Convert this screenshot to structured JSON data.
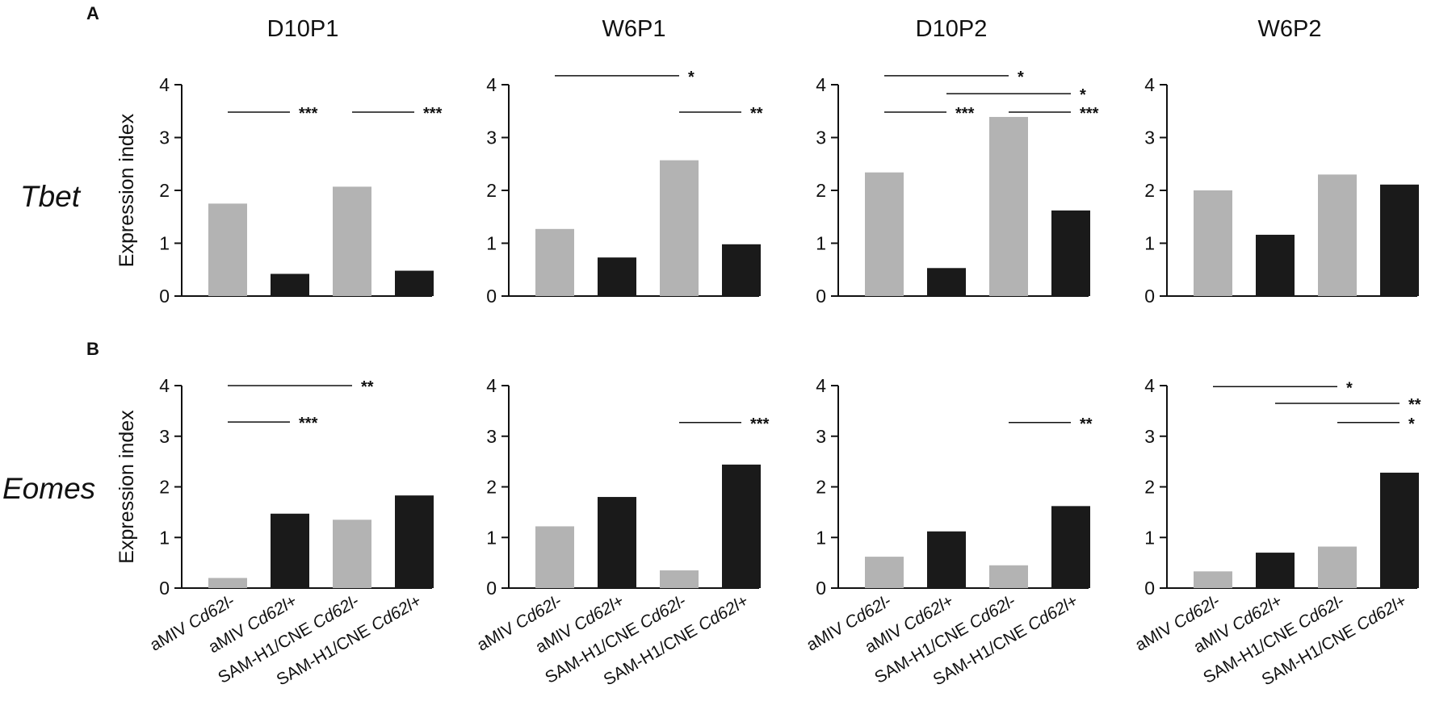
{
  "panel_letters": [
    "A",
    "B"
  ],
  "column_titles": [
    "D10P1",
    "W6P1",
    "D10P2",
    "W6P2"
  ],
  "row_labels": [
    "Tbet",
    "Eomes"
  ],
  "colors": {
    "light_bar": "#b3b3b3",
    "dark_bar": "#1a1a1a",
    "axis": "#111111"
  },
  "chart_data": [
    {
      "type": "bar",
      "row": "Tbet",
      "title": "D10P1",
      "ylabel": "Expression index",
      "ylim": [
        0,
        4
      ],
      "yticks": [
        0,
        1,
        2,
        3,
        4
      ],
      "categories": [
        "aMIV Cd62l-",
        "aMIV Cd62l+",
        "SAM-H1/CNE Cd62l-",
        "SAM-H1/CNE Cd62l+"
      ],
      "values": [
        1.75,
        0.42,
        2.07,
        0.48
      ],
      "significance": [
        {
          "from": 0,
          "to": 1,
          "label": "***",
          "y": 3.48
        },
        {
          "from": 2,
          "to": 3,
          "label": "***",
          "y": 3.48
        }
      ]
    },
    {
      "type": "bar",
      "row": "Tbet",
      "title": "W6P1",
      "ylabel": "",
      "ylim": [
        0,
        4
      ],
      "yticks": [
        0,
        1,
        2,
        3,
        4
      ],
      "categories": [
        "aMIV Cd62l-",
        "aMIV Cd62l+",
        "SAM-H1/CNE Cd62l-",
        "SAM-H1/CNE Cd62l+"
      ],
      "values": [
        1.27,
        0.73,
        2.57,
        0.98
      ],
      "significance": [
        {
          "from": 0,
          "to": 2,
          "label": "*",
          "y": 4.17
        },
        {
          "from": 2,
          "to": 3,
          "label": "**",
          "y": 3.48
        }
      ]
    },
    {
      "type": "bar",
      "row": "Tbet",
      "title": "D10P2",
      "ylabel": "",
      "ylim": [
        0,
        4
      ],
      "yticks": [
        0,
        1,
        2,
        3,
        4
      ],
      "categories": [
        "aMIV Cd62l-",
        "aMIV Cd62l+",
        "SAM-H1/CNE Cd62l-",
        "SAM-H1/CNE Cd62l+"
      ],
      "values": [
        2.34,
        0.53,
        3.39,
        1.62
      ],
      "significance": [
        {
          "from": 0,
          "to": 2,
          "label": "*",
          "y": 4.17
        },
        {
          "from": 1,
          "to": 3,
          "label": "*",
          "y": 3.83
        },
        {
          "from": 0,
          "to": 1,
          "label": "***",
          "y": 3.48
        },
        {
          "from": 2,
          "to": 3,
          "label": "***",
          "y": 3.48
        }
      ]
    },
    {
      "type": "bar",
      "row": "Tbet",
      "title": "W6P2",
      "ylabel": "",
      "ylim": [
        0,
        4
      ],
      "yticks": [
        0,
        1,
        2,
        3,
        4
      ],
      "categories": [
        "aMIV Cd62l-",
        "aMIV Cd62l+",
        "SAM-H1/CNE Cd62l-",
        "SAM-H1/CNE Cd62l+"
      ],
      "values": [
        2.0,
        1.16,
        2.3,
        2.11
      ],
      "significance": []
    },
    {
      "type": "bar",
      "row": "Eomes",
      "title": "D10P1",
      "ylabel": "Expression index",
      "ylim": [
        0,
        4
      ],
      "yticks": [
        0,
        1,
        2,
        3,
        4
      ],
      "categories": [
        "aMIV Cd62l-",
        "aMIV Cd62l+",
        "SAM-H1/CNE Cd62l-",
        "SAM-H1/CNE Cd62l+"
      ],
      "values": [
        0.2,
        1.47,
        1.35,
        1.83
      ],
      "significance": [
        {
          "from": 0,
          "to": 2,
          "label": "**",
          "y": 4.0
        },
        {
          "from": 0,
          "to": 1,
          "label": "***",
          "y": 3.28
        }
      ]
    },
    {
      "type": "bar",
      "row": "Eomes",
      "title": "W6P1",
      "ylabel": "",
      "ylim": [
        0,
        4
      ],
      "yticks": [
        0,
        1,
        2,
        3,
        4
      ],
      "categories": [
        "aMIV Cd62l-",
        "aMIV Cd62l+",
        "SAM-H1/CNE Cd62l-",
        "SAM-H1/CNE Cd62l+"
      ],
      "values": [
        1.22,
        1.8,
        0.35,
        2.44
      ],
      "significance": [
        {
          "from": 2,
          "to": 3,
          "label": "***",
          "y": 3.27
        }
      ]
    },
    {
      "type": "bar",
      "row": "Eomes",
      "title": "D10P2",
      "ylabel": "",
      "ylim": [
        0,
        4
      ],
      "yticks": [
        0,
        1,
        2,
        3,
        4
      ],
      "categories": [
        "aMIV Cd62l-",
        "aMIV Cd62l+",
        "SAM-H1/CNE Cd62l-",
        "SAM-H1/CNE Cd62l+"
      ],
      "values": [
        0.62,
        1.12,
        0.45,
        1.62
      ],
      "significance": [
        {
          "from": 2,
          "to": 3,
          "label": "**",
          "y": 3.27
        }
      ]
    },
    {
      "type": "bar",
      "row": "Eomes",
      "title": "W6P2",
      "ylabel": "",
      "ylim": [
        0,
        4
      ],
      "yticks": [
        0,
        1,
        2,
        3,
        4
      ],
      "categories": [
        "aMIV Cd62l-",
        "aMIV Cd62l+",
        "SAM-H1/CNE Cd62l-",
        "SAM-H1/CNE Cd62l+"
      ],
      "values": [
        0.33,
        0.7,
        0.82,
        2.28
      ],
      "significance": [
        {
          "from": 0,
          "to": 2,
          "label": "*",
          "y": 3.98
        },
        {
          "from": 1,
          "to": 3,
          "label": "**",
          "y": 3.65
        },
        {
          "from": 2,
          "to": 3,
          "label": "*",
          "y": 3.27
        }
      ]
    }
  ]
}
